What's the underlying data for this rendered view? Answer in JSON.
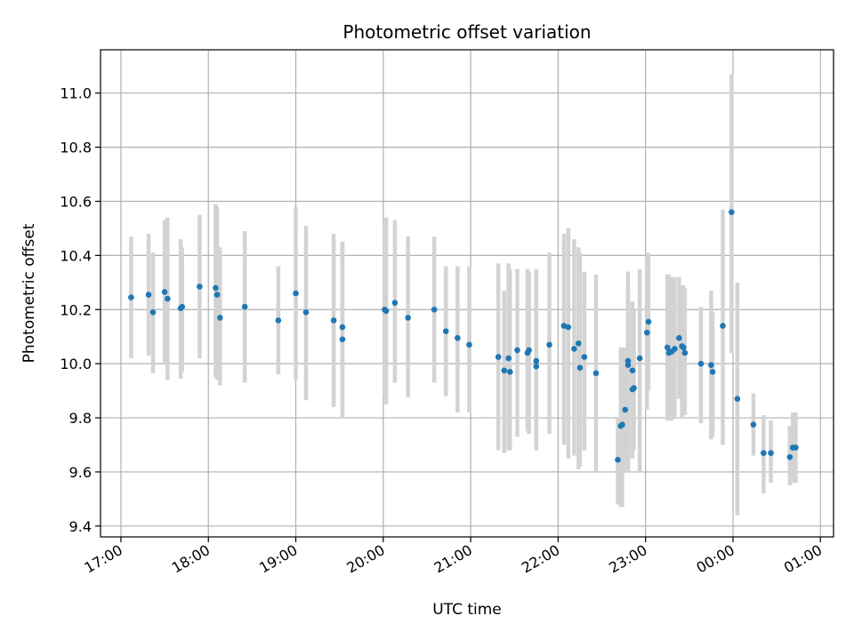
{
  "chart_data": {
    "type": "scatter",
    "title": "Photometric offset variation",
    "xlabel": "UTC time",
    "ylabel": "Photometric offset",
    "xlim": [
      "16:46",
      "01:09"
    ],
    "ylim": [
      9.36,
      11.16
    ],
    "x_ticks": [
      "17:00",
      "18:00",
      "19:00",
      "20:00",
      "21:00",
      "22:00",
      "23:00",
      "00:00",
      "01:00"
    ],
    "y_ticks": [
      "9.4",
      "9.6",
      "9.8",
      "10.0",
      "10.2",
      "10.4",
      "10.6",
      "10.8",
      "11.0"
    ],
    "grid": true,
    "marker_color": "#1f77b4",
    "errorbar_color": "#d3d3d3",
    "series": [
      {
        "x": [
          "17:07",
          "17:19",
          "17:22",
          "17:30",
          "17:32",
          "17:41",
          "17:42",
          "17:54",
          "18:05",
          "18:06",
          "18:08",
          "18:25",
          "18:48",
          "19:00",
          "19:07",
          "19:26",
          "19:32",
          "19:32",
          "20:01",
          "20:02",
          "20:08",
          "20:17",
          "20:35",
          "20:43",
          "20:51",
          "20:59",
          "21:19",
          "21:23",
          "21:26",
          "21:27",
          "21:32",
          "21:39",
          "21:40",
          "21:45",
          "21:45",
          "21:54",
          "22:04",
          "22:07",
          "22:11",
          "22:14",
          "22:15",
          "22:18",
          "22:26",
          "22:41",
          "22:43",
          "22:44",
          "22:46",
          "22:48",
          "22:48",
          "22:51",
          "22:51",
          "22:52",
          "22:56",
          "23:01",
          "23:02",
          "23:15",
          "23:16",
          "23:18",
          "23:20",
          "23:23",
          "23:25",
          "23:26",
          "23:27",
          "23:38",
          "23:45",
          "23:46",
          "23:53",
          "23:59",
          "24:03",
          "24:14",
          "24:21",
          "24:26",
          "24:39",
          "24:41",
          "24:43"
        ],
        "y": [
          10.245,
          10.255,
          10.19,
          10.265,
          10.24,
          10.205,
          10.21,
          10.285,
          10.28,
          10.255,
          10.17,
          10.21,
          10.16,
          10.26,
          10.19,
          10.16,
          10.135,
          10.09,
          10.2,
          10.195,
          10.225,
          10.17,
          10.2,
          10.12,
          10.095,
          10.07,
          10.025,
          9.975,
          10.02,
          9.97,
          10.05,
          10.04,
          10.05,
          10.01,
          9.99,
          10.07,
          10.14,
          10.135,
          10.055,
          10.075,
          9.985,
          10.025,
          9.965,
          9.645,
          9.77,
          9.775,
          9.83,
          10.01,
          9.995,
          9.975,
          9.905,
          9.91,
          10.02,
          10.115,
          10.155,
          10.06,
          10.04,
          10.045,
          10.055,
          10.095,
          10.065,
          10.06,
          10.04,
          10.0,
          9.995,
          9.97,
          10.14,
          10.56,
          9.87,
          9.775,
          9.67,
          9.67,
          9.655,
          9.69,
          9.69
        ],
        "y_low": [
          10.02,
          10.03,
          9.965,
          10.0,
          9.94,
          9.945,
          9.97,
          10.02,
          9.95,
          9.94,
          9.92,
          9.93,
          9.96,
          9.94,
          9.865,
          9.84,
          9.8,
          9.8,
          9.88,
          9.85,
          9.93,
          9.875,
          9.93,
          9.88,
          9.82,
          9.82,
          9.68,
          9.67,
          9.68,
          9.68,
          9.73,
          9.75,
          9.74,
          9.7,
          9.68,
          9.74,
          9.7,
          9.65,
          9.66,
          9.61,
          9.62,
          9.68,
          9.6,
          9.48,
          9.47,
          9.47,
          9.6,
          9.6,
          9.6,
          9.65,
          9.68,
          9.68,
          9.6,
          9.83,
          9.9,
          9.79,
          9.79,
          9.79,
          9.8,
          9.87,
          9.8,
          9.82,
          9.81,
          9.78,
          9.72,
          9.73,
          9.7,
          10.04,
          9.44,
          9.66,
          9.52,
          9.56,
          9.55,
          9.56,
          9.56
        ],
        "y_high": [
          10.47,
          10.48,
          10.41,
          10.53,
          10.54,
          10.46,
          10.43,
          10.55,
          10.59,
          10.58,
          10.43,
          10.49,
          10.36,
          10.58,
          10.51,
          10.48,
          10.45,
          10.45,
          10.52,
          10.54,
          10.53,
          10.47,
          10.47,
          10.36,
          10.36,
          10.36,
          10.37,
          10.27,
          10.37,
          10.35,
          10.35,
          10.35,
          10.34,
          10.35,
          10.35,
          10.41,
          10.48,
          10.5,
          10.46,
          10.43,
          10.41,
          10.34,
          10.33,
          9.8,
          10.06,
          10.06,
          10.06,
          10.29,
          10.34,
          10.23,
          10.2,
          10.2,
          10.35,
          10.4,
          10.41,
          10.33,
          10.33,
          10.32,
          10.32,
          10.32,
          10.29,
          10.29,
          10.28,
          10.21,
          10.27,
          10.19,
          10.57,
          11.07,
          10.3,
          9.89,
          9.81,
          9.79,
          9.77,
          9.82,
          9.82
        ]
      }
    ]
  }
}
